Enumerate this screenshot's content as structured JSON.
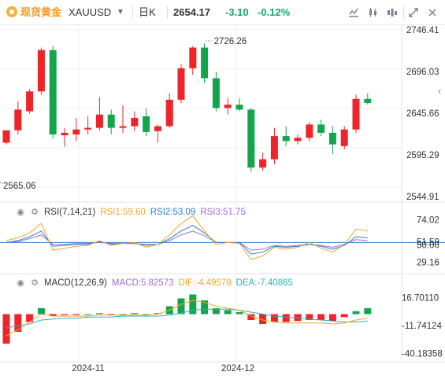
{
  "toolbar": {
    "symbol_name": "现货黄金",
    "symbol_code": "XAUUSD",
    "period": "日K",
    "last_price": "2654.17",
    "change": "-3.10",
    "change_pct": "-0.12%",
    "icons": [
      "indicator-icon",
      "kline-icon",
      "compare-icon",
      "fullscreen-icon",
      "close-icon"
    ]
  },
  "main_axis": {
    "ticks": [
      "2746.41",
      "2696.03",
      "2645.66",
      "2595.29",
      "2544.91"
    ],
    "high_marker": "2726.26",
    "low_marker": "2565.06"
  },
  "rsi": {
    "label": "RSI(7,14,21)",
    "rsi1": "RSI1:59.60",
    "rsi2": "RSI2:53.09",
    "rsi3": "RSI3:51.75",
    "ticks": [
      "74.02",
      "51.59",
      "50.00",
      "29.16"
    ],
    "colors": {
      "rsi1": "#f5a623",
      "rsi2": "#2e7fd6",
      "rsi3": "#9b6fd1"
    }
  },
  "macd": {
    "label": "MACD(12,26,9)",
    "macd": "MACD:5.82573",
    "dif": "DIF:-4.49578",
    "dea": "DEA:-7.40865",
    "ticks": [
      "16.70110",
      "-11.74124",
      "-40.18358"
    ],
    "colors": {
      "macd": "#9b6fd1",
      "dif": "#f5a623",
      "dea": "#2bb3c0"
    }
  },
  "time_axis": [
    "2024-11",
    "2024-12"
  ],
  "chart_data": {
    "type": "candlestick",
    "up_color": "#ef232a",
    "down_color": "#14a44d",
    "candles": [
      {
        "o": 2610,
        "h": 2625,
        "l": 2608,
        "c": 2625
      },
      {
        "o": 2625,
        "h": 2660,
        "l": 2620,
        "c": 2650
      },
      {
        "o": 2648,
        "h": 2675,
        "l": 2645,
        "c": 2672
      },
      {
        "o": 2672,
        "h": 2725,
        "l": 2668,
        "c": 2722
      },
      {
        "o": 2722,
        "h": 2727,
        "l": 2615,
        "c": 2620
      },
      {
        "o": 2619,
        "h": 2628,
        "l": 2605,
        "c": 2622
      },
      {
        "o": 2620,
        "h": 2640,
        "l": 2612,
        "c": 2626
      },
      {
        "o": 2626,
        "h": 2642,
        "l": 2620,
        "c": 2628
      },
      {
        "o": 2628,
        "h": 2665,
        "l": 2625,
        "c": 2644
      },
      {
        "o": 2644,
        "h": 2650,
        "l": 2620,
        "c": 2628
      },
      {
        "o": 2628,
        "h": 2655,
        "l": 2622,
        "c": 2630
      },
      {
        "o": 2630,
        "h": 2648,
        "l": 2624,
        "c": 2640
      },
      {
        "o": 2642,
        "h": 2652,
        "l": 2618,
        "c": 2623
      },
      {
        "o": 2624,
        "h": 2632,
        "l": 2610,
        "c": 2630
      },
      {
        "o": 2630,
        "h": 2670,
        "l": 2628,
        "c": 2662
      },
      {
        "o": 2662,
        "h": 2705,
        "l": 2658,
        "c": 2700
      },
      {
        "o": 2700,
        "h": 2727,
        "l": 2692,
        "c": 2725
      },
      {
        "o": 2725,
        "h": 2730,
        "l": 2682,
        "c": 2688
      },
      {
        "o": 2688,
        "h": 2696,
        "l": 2648,
        "c": 2652
      },
      {
        "o": 2652,
        "h": 2664,
        "l": 2644,
        "c": 2656
      },
      {
        "o": 2656,
        "h": 2664,
        "l": 2648,
        "c": 2650
      },
      {
        "o": 2650,
        "h": 2652,
        "l": 2575,
        "c": 2580
      },
      {
        "o": 2580,
        "h": 2598,
        "l": 2576,
        "c": 2590
      },
      {
        "o": 2590,
        "h": 2628,
        "l": 2584,
        "c": 2618
      },
      {
        "o": 2618,
        "h": 2630,
        "l": 2606,
        "c": 2612
      },
      {
        "o": 2612,
        "h": 2620,
        "l": 2608,
        "c": 2616
      },
      {
        "o": 2616,
        "h": 2635,
        "l": 2612,
        "c": 2632
      },
      {
        "o": 2632,
        "h": 2638,
        "l": 2618,
        "c": 2622
      },
      {
        "o": 2622,
        "h": 2630,
        "l": 2596,
        "c": 2608
      },
      {
        "o": 2606,
        "h": 2630,
        "l": 2602,
        "c": 2626
      },
      {
        "o": 2626,
        "h": 2668,
        "l": 2622,
        "c": 2663
      },
      {
        "o": 2663,
        "h": 2670,
        "l": 2656,
        "c": 2658
      }
    ],
    "rsi1": [
      52,
      55,
      60,
      70,
      42,
      44,
      46,
      47,
      52,
      47,
      49,
      50,
      45,
      48,
      58,
      70,
      78,
      62,
      48,
      50,
      49,
      32,
      36,
      45,
      43,
      45,
      50,
      44,
      40,
      48,
      64,
      62
    ],
    "rsi2": [
      50,
      52,
      56,
      62,
      46,
      47,
      48,
      48,
      51,
      48,
      49,
      49,
      47,
      48,
      54,
      62,
      68,
      60,
      50,
      50,
      50,
      38,
      40,
      46,
      45,
      46,
      48,
      46,
      43,
      47,
      56,
      55
    ],
    "rsi3": [
      50,
      51,
      54,
      58,
      48,
      48,
      49,
      49,
      50,
      49,
      49,
      49,
      48,
      48,
      52,
      58,
      62,
      57,
      50,
      50,
      50,
      42,
      43,
      47,
      46,
      47,
      48,
      47,
      45,
      48,
      53,
      52
    ],
    "macd_hist": [
      -30,
      -18,
      -8,
      6,
      -2,
      -1,
      -1,
      0,
      1,
      -1,
      0,
      1,
      0,
      1,
      8,
      16,
      20,
      14,
      6,
      4,
      2,
      -6,
      -10,
      -8,
      -8,
      -7,
      -6,
      -6,
      -7,
      -3,
      3,
      6
    ],
    "dif": [
      -22,
      -16,
      -8,
      0,
      -2,
      -2,
      -2,
      -2,
      -1,
      -1,
      -1,
      -1,
      -1,
      0,
      4,
      10,
      14,
      12,
      8,
      6,
      4,
      -2,
      -6,
      -8,
      -9,
      -9,
      -9,
      -9,
      -10,
      -9,
      -6,
      -4
    ],
    "dea": [
      -14,
      -12,
      -10,
      -6,
      -5,
      -4,
      -4,
      -3,
      -3,
      -3,
      -2,
      -2,
      -2,
      -2,
      -1,
      1,
      4,
      5,
      5,
      5,
      4,
      2,
      0,
      -2,
      -3,
      -4,
      -5,
      -6,
      -7,
      -8,
      -8,
      -7
    ]
  }
}
